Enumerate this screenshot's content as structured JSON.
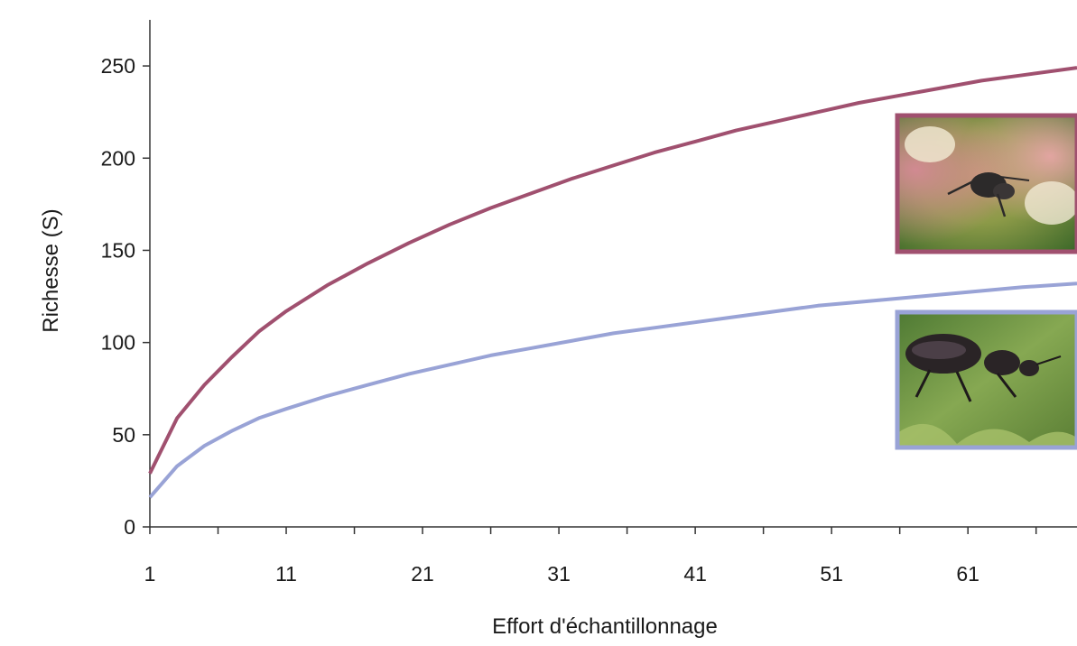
{
  "chart_data": {
    "type": "line",
    "title": "",
    "xlabel": "Effort d'échantillonnage",
    "ylabel": "Richesse (S)",
    "x_ticks": [
      1,
      11,
      21,
      31,
      41,
      51,
      61
    ],
    "y_ticks": [
      0,
      50,
      100,
      150,
      200,
      250
    ],
    "xlim": [
      1,
      69
    ],
    "ylim": [
      0,
      275
    ],
    "grid": false,
    "legend": "none (insets of beetle photos next to each curve)",
    "x": [
      1,
      3,
      5,
      7,
      9,
      11,
      14,
      17,
      20,
      23,
      26,
      29,
      32,
      35,
      38,
      41,
      44,
      47,
      50,
      53,
      56,
      59,
      62,
      65,
      69
    ],
    "series": [
      {
        "color": "#a0506f",
        "values": [
          29,
          59,
          77,
          92,
          106,
          117,
          131,
          143,
          154,
          164,
          173,
          181,
          189,
          196,
          203,
          209,
          215,
          220,
          225,
          230,
          234,
          238,
          242,
          245,
          249
        ]
      },
      {
        "color": "#99a3d6",
        "values": [
          16,
          33,
          44,
          52,
          59,
          64,
          71,
          77,
          83,
          88,
          93,
          97,
          101,
          105,
          108,
          111,
          114,
          117,
          120,
          122,
          124,
          126,
          128,
          130,
          132
        ]
      }
    ],
    "insets": [
      {
        "name": "beetle-flying-photo",
        "border_color": "#a0506f"
      },
      {
        "name": "beetle-ground-photo",
        "border_color": "#99a3d6"
      }
    ]
  }
}
